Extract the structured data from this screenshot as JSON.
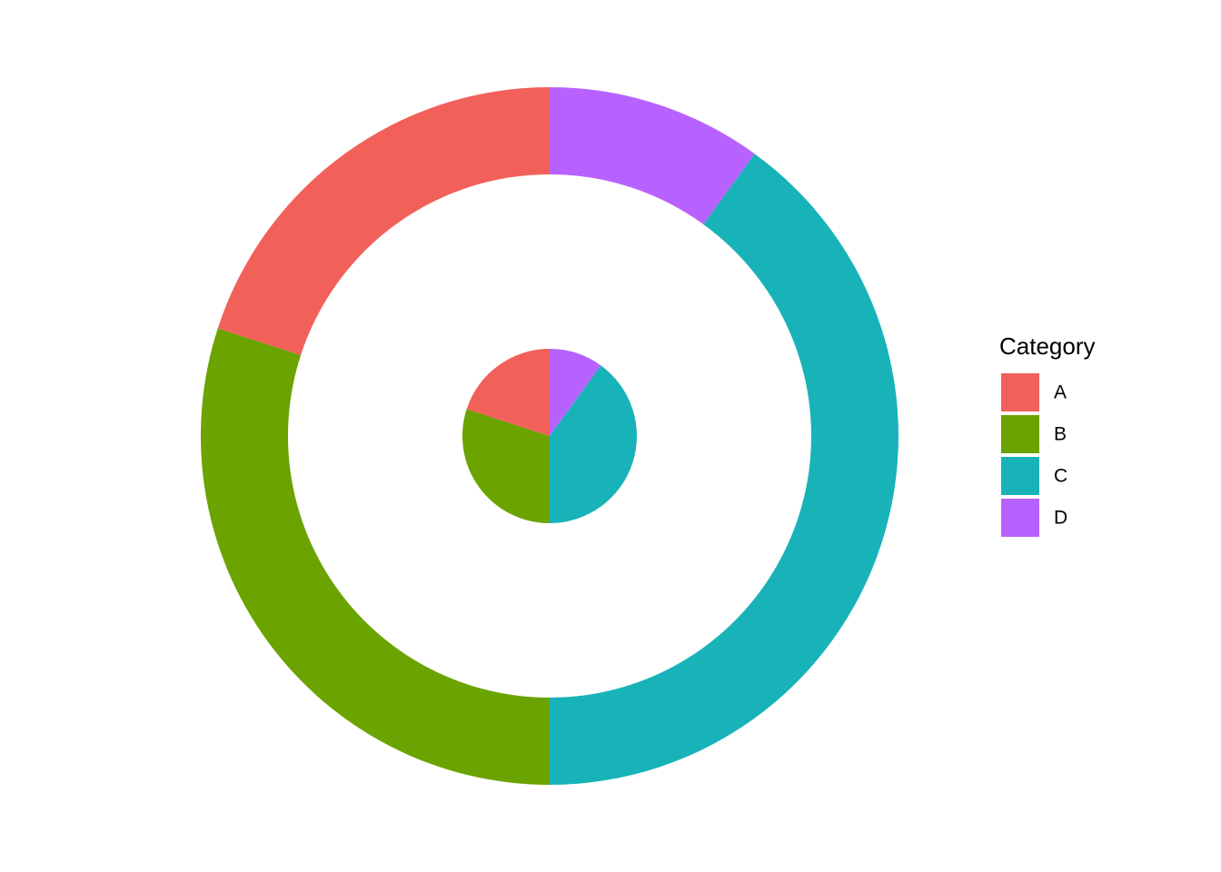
{
  "chart_data": {
    "type": "donut",
    "legend_title": "Category",
    "categories": [
      "A",
      "B",
      "C",
      "D"
    ],
    "colors": [
      "#F2605A",
      "#6BA300",
      "#18B3B8",
      "#B762FE"
    ],
    "rings": [
      {
        "values": [
          20,
          30,
          40,
          10
        ]
      },
      {
        "values": [
          20,
          30,
          40,
          10
        ]
      }
    ],
    "legend": "right"
  }
}
